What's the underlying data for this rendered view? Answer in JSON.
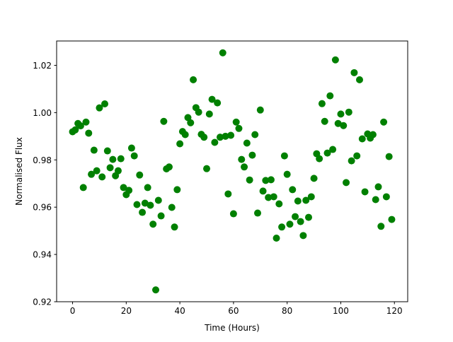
{
  "chart_data": {
    "type": "scatter",
    "title": "",
    "xlabel": "Time (Hours)",
    "ylabel": "Normalised Flux",
    "xlim": [
      -5.95,
      124.95
    ],
    "ylim": [
      0.92,
      1.0303
    ],
    "xticks": [
      0,
      20,
      40,
      60,
      80,
      100,
      120
    ],
    "xtick_labels": [
      "0",
      "20",
      "40",
      "60",
      "80",
      "100",
      "120"
    ],
    "yticks": [
      0.92,
      0.94,
      0.96,
      0.98,
      1.0,
      1.02
    ],
    "ytick_labels": [
      "0.92",
      "0.94",
      "0.96",
      "0.98",
      "1.00",
      "1.02"
    ],
    "grid": false,
    "marker_color": "#008000",
    "x": [
      0,
      1,
      2,
      3,
      4,
      5,
      6,
      7,
      8,
      9,
      10,
      11,
      12,
      13,
      14,
      15,
      16,
      17,
      18,
      19,
      20,
      21,
      22,
      23,
      24,
      25,
      26,
      27,
      28,
      29,
      30,
      31,
      32,
      33,
      34,
      35,
      36,
      37,
      38,
      39,
      40,
      41,
      42,
      43,
      44,
      45,
      46,
      47,
      48,
      49,
      50,
      51,
      52,
      53,
      54,
      55,
      56,
      57,
      58,
      59,
      60,
      61,
      62,
      63,
      64,
      65,
      66,
      67,
      68,
      69,
      70,
      71,
      72,
      73,
      74,
      75,
      76,
      77,
      78,
      79,
      80,
      81,
      82,
      83,
      84,
      85,
      86,
      87,
      88,
      89,
      90,
      91,
      92,
      93,
      94,
      95,
      96,
      97,
      98,
      99,
      100,
      101,
      102,
      103,
      104,
      105,
      106,
      107,
      108,
      109,
      110,
      111,
      112,
      113,
      114,
      115,
      116,
      117,
      118,
      119
    ],
    "y": [
      0.9919,
      0.9927,
      0.9954,
      0.9944,
      0.9683,
      0.996,
      0.9913,
      0.9739,
      0.9841,
      0.9754,
      1.002,
      0.9728,
      1.0037,
      0.9838,
      0.9767,
      0.9802,
      0.9733,
      0.9754,
      0.9805,
      0.9683,
      0.9653,
      0.9671,
      0.985,
      0.9817,
      0.9611,
      0.9736,
      0.9578,
      0.9617,
      0.9683,
      0.9608,
      0.9528,
      0.925,
      0.9629,
      0.9563,
      0.9963,
      0.9762,
      0.977,
      0.9599,
      0.9516,
      0.9674,
      0.9868,
      0.992,
      0.9907,
      0.9979,
      0.9957,
      1.0139,
      1.0021,
      1.0002,
      0.9908,
      0.9896,
      0.9763,
      0.9994,
      1.0056,
      0.9874,
      1.0041,
      0.9896,
      1.0253,
      0.99,
      0.9656,
      0.9904,
      0.9572,
      0.996,
      0.9933,
      0.9802,
      0.977,
      0.9871,
      0.9715,
      0.982,
      0.9907,
      0.9575,
      1.0011,
      0.9668,
      0.9713,
      0.9641,
      0.9716,
      0.9644,
      0.9469,
      0.9614,
      0.9516,
      0.9817,
      0.9739,
      0.9528,
      0.9674,
      0.956,
      0.9626,
      0.9539,
      0.948,
      0.9629,
      0.9557,
      0.9644,
      0.9722,
      0.9826,
      0.9805,
      1.0038,
      0.9963,
      0.9829,
      1.0071,
      0.9844,
      1.0223,
      0.9954,
      0.9994,
      0.9945,
      0.9704,
      1.0002,
      0.9796,
      1.0169,
      0.9817,
      1.0139,
      0.9889,
      0.9665,
      0.991,
      0.9892,
      0.9907,
      0.9632,
      0.9686,
      0.9519,
      0.996,
      0.9644,
      0.9814,
      0.9548
    ]
  }
}
